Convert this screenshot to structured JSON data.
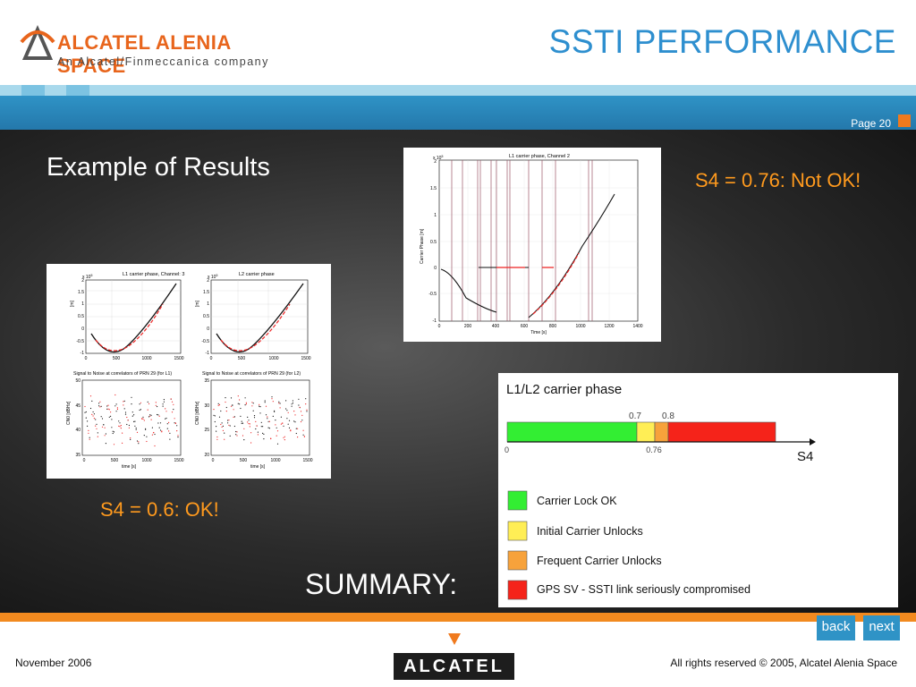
{
  "header": {
    "company": "ALCATEL ALENIA SPACE",
    "tagline": "An Alcatel/Finmeccanica company",
    "slide_title": "SSTI PERFORMANCE",
    "page_label": "Page 20"
  },
  "content": {
    "section_title": "Example of Results",
    "s4_bad": "S4 = 0.76: Not OK!",
    "s4_ok": "S4 = 0.6: OK!",
    "summary": "SUMMARY:"
  },
  "left_figure": {
    "p1_title": "L1 carrier phase, Channel: 3",
    "p2_title": "L2 carrier phase",
    "p3_title": "Signal to Noise at correlators of PRN 29 (for L1)",
    "p4_title": "Signal to Noise at correlators of PRN 29 (for L2)",
    "ylabel_phase": "[m]",
    "ylabel_cn0": "CN0 [dBHz]",
    "xlabel_time": "time [s]",
    "exp": "x 10",
    "exp_sup": "5",
    "phase_yticks": [
      "2",
      "1.5",
      "1",
      "0.5",
      "0",
      "-0.5",
      "-1"
    ],
    "p1_xticks": [
      "0",
      "500",
      "1000",
      "1500"
    ],
    "cn0_l1_yticks": [
      "50",
      "45",
      "40",
      "35"
    ],
    "cn0_l2_yticks": [
      "35",
      "30",
      "25",
      "20"
    ]
  },
  "right_figure": {
    "title": "L1 carrier phase, Channel 2",
    "ylabel": "Carrier Phase [m]",
    "xlabel": "Time [s]",
    "exp": "x 10",
    "exp_sup": "5",
    "yticks": [
      "2",
      "1.5",
      "1",
      "0.5",
      "0",
      "-0.5",
      "-1"
    ],
    "xticks": [
      "0",
      "200",
      "400",
      "600",
      "800",
      "1000",
      "1200",
      "1400"
    ]
  },
  "legend_panel": {
    "title": "L1/L2 carrier phase",
    "axis_label": "S4",
    "tick_0": "0",
    "tick_07": "0.7",
    "tick_08": "0.8",
    "tick_076": "0.76",
    "items": [
      {
        "label": "Carrier Lock OK",
        "color": "#33ee33"
      },
      {
        "label": "Initial Carrier Unlocks",
        "color": "#ffee55"
      },
      {
        "label": "Frequent Carrier Unlocks",
        "color": "#f7a23b"
      },
      {
        "label": "GPS SV - SSTI link seriously compromised",
        "color": "#f5231a"
      }
    ]
  },
  "nav": {
    "back": "back",
    "next": "next"
  },
  "footer": {
    "date": "November 2006",
    "logo_text": "ALCATEL",
    "rights": "All rights reserved © 2005, Alcatel Alenia Space"
  },
  "colors": {
    "accent_blue": "#2f93c6",
    "accent_orange": "#f28a1f",
    "text_orange": "#ff9a1e"
  }
}
